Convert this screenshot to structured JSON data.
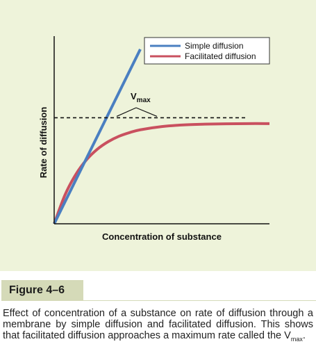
{
  "figure_label": "Figure 4–6",
  "caption": {
    "text": "Effect of concentration of a substance on rate of diffusion through a membrane by simple diffusion and facilitated diffusion. This shows that facilitated diffusion approaches a maximum rate called the V",
    "subscript": "max",
    "end": "."
  },
  "colors": {
    "panel_bg": "#eef3da",
    "label_bg": "#d5dab8",
    "simple": "#4a7fc1",
    "facilitated": "#c9505f"
  },
  "chart_data": {
    "type": "line",
    "title": "",
    "xlabel": "Concentration of substance",
    "ylabel": "Rate of diffusion",
    "xlim": [
      0,
      10
    ],
    "ylim": [
      0,
      10
    ],
    "ticks": false,
    "legend": "top-right",
    "series": [
      {
        "name": "Simple diffusion",
        "color": "#4a7fc1",
        "x": [
          0,
          4
        ],
        "y": [
          0,
          9.3
        ]
      },
      {
        "name": "Facilitated diffusion",
        "color": "#c9505f",
        "x": [
          0,
          0.5,
          1,
          1.5,
          2,
          2.5,
          3,
          3.5,
          4,
          5,
          6,
          7,
          8,
          9,
          10
        ],
        "y": [
          0,
          1.53,
          2.62,
          3.41,
          3.97,
          4.37,
          4.66,
          4.86,
          5.01,
          5.18,
          5.27,
          5.31,
          5.33,
          5.34,
          5.34
        ]
      }
    ],
    "annotations": [
      {
        "kind": "hline",
        "style": "dashed",
        "y": 5.65,
        "label": "V",
        "label_sub": "max"
      }
    ]
  }
}
